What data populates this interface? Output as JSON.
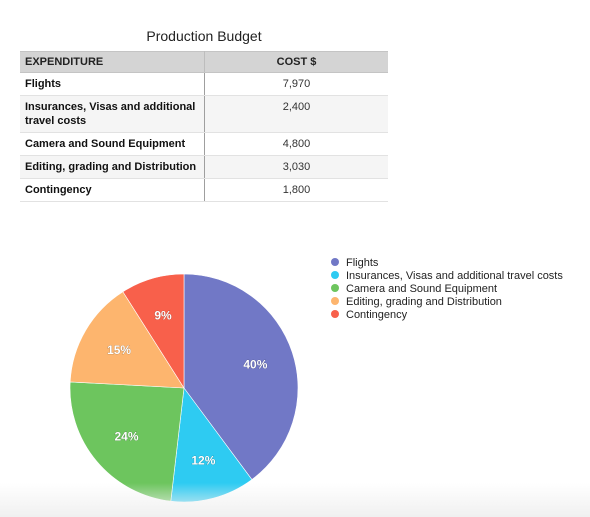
{
  "title": "Production Budget",
  "table": {
    "headers": [
      "EXPENDITURE",
      "COST $"
    ],
    "rows": [
      {
        "label": "Flights",
        "cost": "7,970"
      },
      {
        "label": "Insurances, Visas and additional travel costs",
        "cost": "2,400"
      },
      {
        "label": "Camera and Sound Equipment",
        "cost": "4,800"
      },
      {
        "label": "Editing, grading and Distribution",
        "cost": "3,030"
      },
      {
        "label": "Contingency",
        "cost": "1,800"
      }
    ]
  },
  "chart_data": {
    "type": "pie",
    "categories": [
      "Flights",
      "Insurances, Visas and additional travel costs",
      "Camera and Sound Equipment",
      "Editing, grading and Distribution",
      "Contingency"
    ],
    "values": [
      7970,
      2400,
      4800,
      3030,
      1800
    ],
    "percent_labels": [
      "40%",
      "12%",
      "24%",
      "15%",
      "9%"
    ],
    "colors": [
      "#7178c6",
      "#2ecbf2",
      "#6dc55e",
      "#fdb56e",
      "#f8604b"
    ],
    "legend_position": "top-right"
  }
}
